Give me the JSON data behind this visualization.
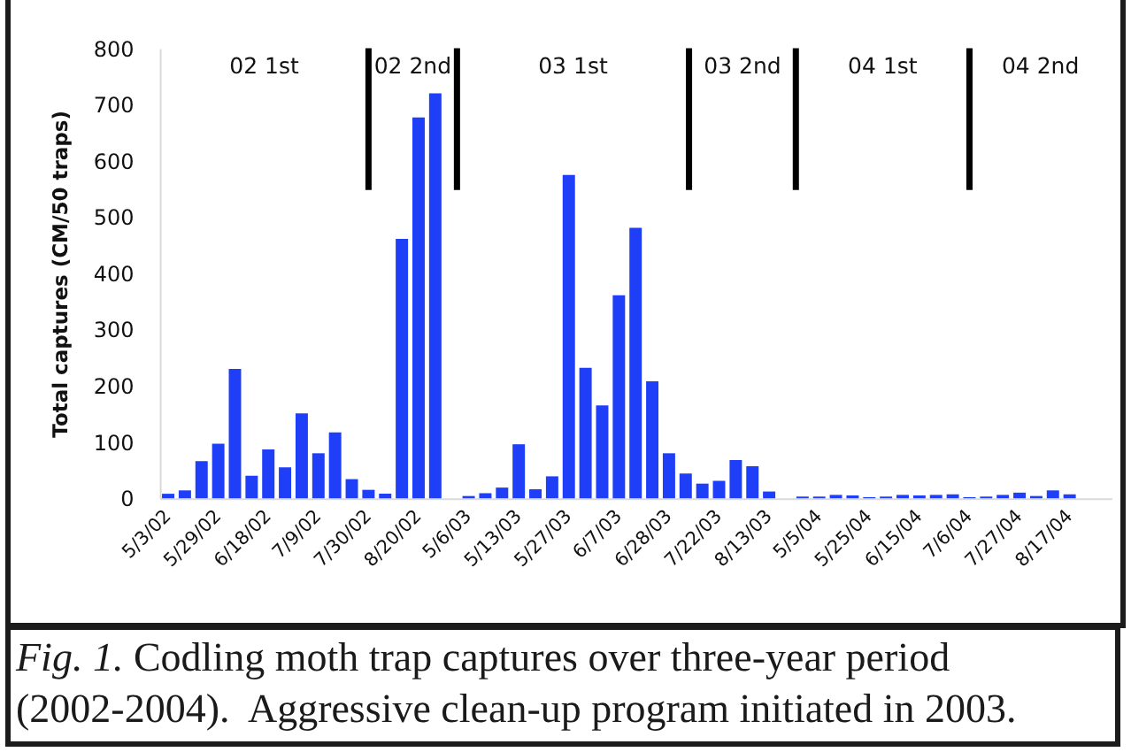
{
  "chart_data": {
    "type": "bar",
    "ylabel": "Total captures (CM/50 traps)",
    "categories": [
      "5/3/02",
      null,
      null,
      "5/29/02",
      null,
      null,
      "6/18/02",
      null,
      null,
      "7/9/02",
      null,
      null,
      "7/30/02",
      null,
      null,
      "8/20/02",
      null,
      null,
      "5/6/03",
      null,
      null,
      "5/13/03",
      null,
      null,
      "5/27/03",
      null,
      null,
      "6/7/03",
      null,
      null,
      "6/28/03",
      null,
      null,
      "7/22/03",
      null,
      null,
      "8/13/03",
      null,
      null,
      "5/5/04",
      null,
      null,
      "5/25/04",
      null,
      null,
      "6/15/04",
      null,
      null,
      "7/6/04",
      null,
      null,
      "7/27/04",
      null,
      null,
      "8/17/04",
      null,
      null
    ],
    "values": [
      8,
      14,
      66,
      97,
      230,
      40,
      87,
      55,
      151,
      80,
      117,
      34,
      15,
      8,
      461,
      677,
      720,
      null,
      4,
      9,
      19,
      96,
      16,
      39,
      575,
      232,
      165,
      361,
      481,
      208,
      80,
      44,
      26,
      31,
      68,
      57,
      12,
      null,
      3,
      3,
      6,
      5,
      2,
      3,
      6,
      5,
      6,
      7,
      2,
      3,
      6,
      10,
      4,
      14,
      7,
      null,
      null
    ],
    "color": "#1f3ef7",
    "ylim": [
      0,
      800
    ],
    "yticks": [
      0,
      100,
      200,
      300,
      400,
      500,
      600,
      700,
      800
    ],
    "ref_lines": [
      {
        "axis": "x",
        "value": "7/30/02",
        "color": "#000000"
      },
      {
        "axis": "x",
        "value": "7/6/04",
        "color": "#000000"
      }
    ],
    "annotations": [
      "02 1st",
      "02 2nd",
      "03 1st",
      "03 2nd",
      "04 1st",
      "04 2nd",
      "Fig. 1. Codling moth trap captures over three-year period (2002-2004).  Aggressive clean-up program initiated in 2003."
    ]
  }
}
